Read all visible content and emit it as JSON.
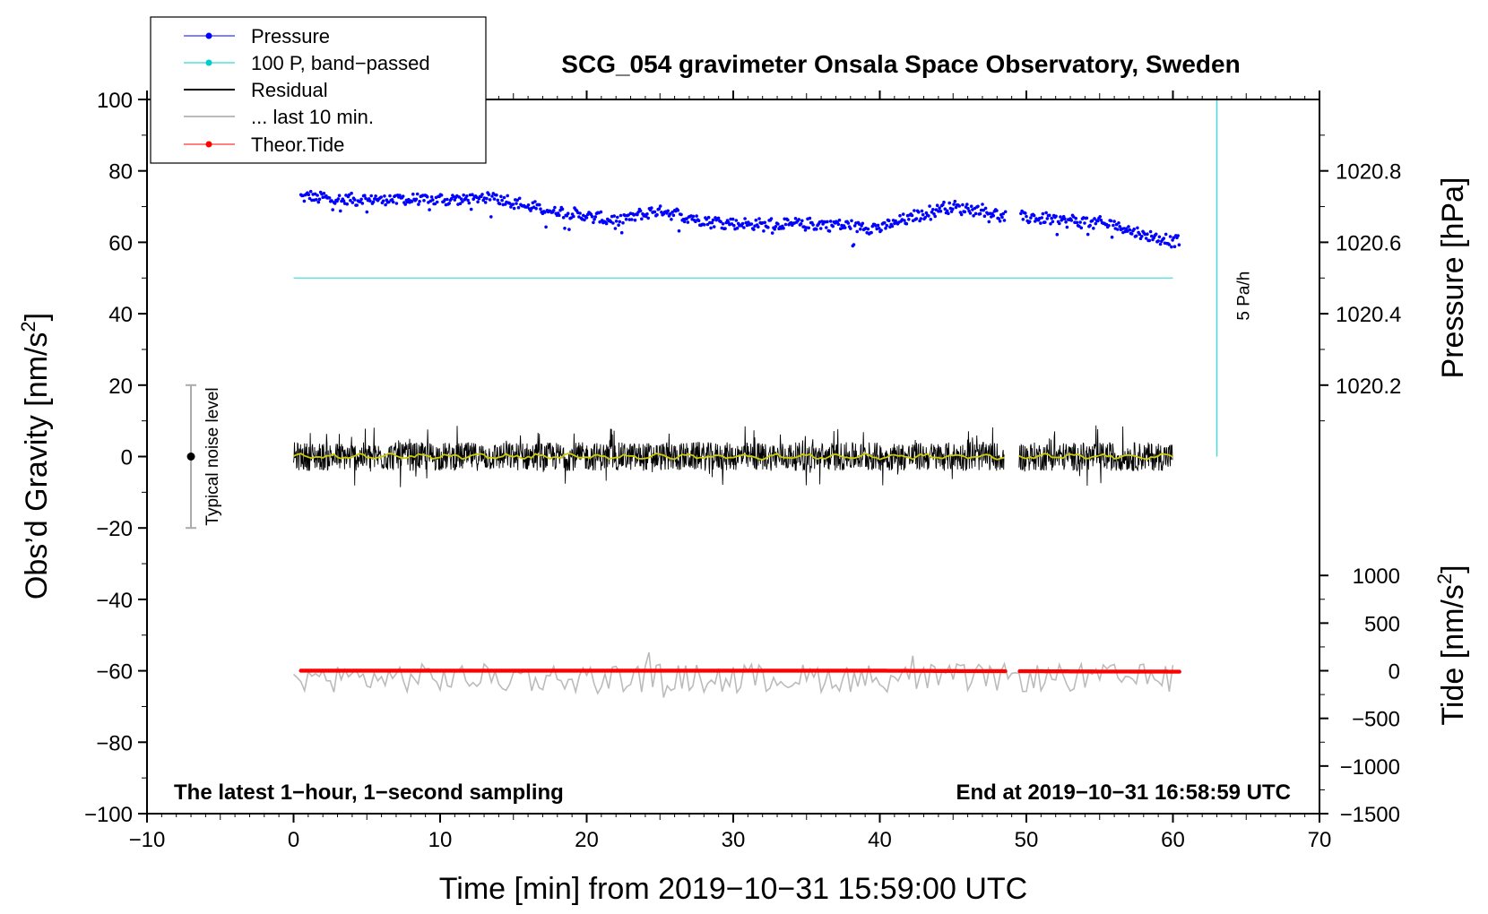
{
  "chart_data": {
    "type": "line",
    "title": "SCG_054 gravimeter Onsala Space Observatory, Sweden",
    "xlabel": "Time [min] from 2019−10−31 15:59:00 UTC",
    "ylabel_left": "Obs’d Gravity [nm/s",
    "ylabel_left_sup": "2",
    "ylabel_left_tail": "]",
    "ylabel_right_top": "Pressure [hPa]",
    "ylabel_right_bottom": "Tide [nm/s",
    "ylabel_right_bottom_sup": "2",
    "ylabel_right_bottom_tail": "]",
    "xlim": [
      -10,
      70
    ],
    "ylim": [
      -100,
      100
    ],
    "x_ticks": [
      -10,
      0,
      10,
      20,
      30,
      40,
      50,
      60,
      70
    ],
    "x_tick_labels": [
      "−10",
      "0",
      "10",
      "20",
      "30",
      "40",
      "50",
      "60",
      "70"
    ],
    "y_ticks": [
      -100,
      -80,
      -60,
      -40,
      -20,
      0,
      20,
      40,
      60,
      80,
      100
    ],
    "y_tick_labels": [
      "−100",
      "−80",
      "−60",
      "−40",
      "−20",
      "0",
      "20",
      "40",
      "60",
      "80",
      "100"
    ],
    "pressure_axis": {
      "ticks": [
        1020.2,
        1020.4,
        1020.6,
        1020.8
      ],
      "tick_labels": [
        "1020.2",
        "1020.4",
        "1020.6",
        "1020.8"
      ],
      "map": {
        "value_a": 1020.2,
        "gravity_a": 20,
        "value_b": 1020.8,
        "gravity_b": 80
      }
    },
    "tide_axis": {
      "ticks": [
        -1500,
        -1000,
        -500,
        0,
        500,
        1000
      ],
      "tick_labels": [
        "−1500",
        "−1000",
        "−500",
        "0",
        "500",
        "1000"
      ],
      "map": {
        "value_a": -1500,
        "gravity_a": -100,
        "value_b": 1000,
        "gravity_b": -33.3
      }
    },
    "legend": [
      {
        "label": "Pressure",
        "color": "#0000ff",
        "marker": "dot"
      },
      {
        "label": "100 P, band−passed",
        "color": "#00cccc",
        "marker": "dot"
      },
      {
        "label": "Residual",
        "color": "#000000",
        "marker": "none"
      },
      {
        "label": "... last 10 min.",
        "color": "#bbbbbb",
        "marker": "none"
      },
      {
        "label": "Theor.Tide",
        "color": "#ff0000",
        "marker": "dot"
      }
    ],
    "legend_position": "top-left",
    "series": [
      {
        "name": "Pressure",
        "color": "#0000ff",
        "unit": "hPa",
        "x": [
          0.5,
          3,
          6,
          9,
          12,
          13.5,
          16,
          19,
          22,
          25,
          28,
          31,
          34,
          37,
          40,
          43,
          44.5,
          47,
          48.5,
          50,
          53,
          56,
          58,
          60.5
        ],
        "values": [
          1020.73,
          1020.72,
          1020.72,
          1020.72,
          1020.72,
          1020.73,
          1020.7,
          1020.68,
          1020.66,
          1020.69,
          1020.66,
          1020.65,
          1020.65,
          1020.65,
          1020.64,
          1020.68,
          1020.7,
          1020.69,
          1020.67,
          1020.67,
          1020.66,
          1020.65,
          1020.62,
          1020.6
        ]
      },
      {
        "name": "100 P, band−passed",
        "color": "#00cccc",
        "x": [
          0,
          60
        ],
        "values": [
          50,
          50
        ]
      },
      {
        "name": "Residual",
        "color": "#000000",
        "x_range": [
          0,
          60
        ],
        "gap": [
          48.5,
          49.5
        ],
        "center": 0,
        "typical_amplitude": 5,
        "peak_max": 11.8,
        "peak_min": -12.7
      },
      {
        "name": "... last 10 min.",
        "color": "#bbbbbb",
        "x_range": [
          0,
          60
        ],
        "center": -62,
        "typical_amplitude": 5,
        "peak_max": -51,
        "peak_min": -71
      },
      {
        "name": "Theor.Tide",
        "color": "#ff0000",
        "unit": "nm/s2",
        "x": [
          0.5,
          10,
          20,
          30,
          40,
          48.5,
          49.5,
          55,
          60.5
        ],
        "values": [
          0,
          0,
          0,
          0,
          0,
          -5,
          -5,
          -8,
          -10
        ]
      }
    ],
    "annotations": {
      "noise_label": "Typical noise level",
      "noise_center": 0,
      "noise_range": [
        -20,
        20
      ],
      "noise_x": -7,
      "rate_label": "5 Pa/h",
      "rate_bar_x": 63,
      "rate_bar_range": [
        0,
        100
      ],
      "bottom_left": "The latest 1−hour, 1−second sampling",
      "bottom_right": "End at 2019−10−31 16:58:59 UTC"
    }
  }
}
